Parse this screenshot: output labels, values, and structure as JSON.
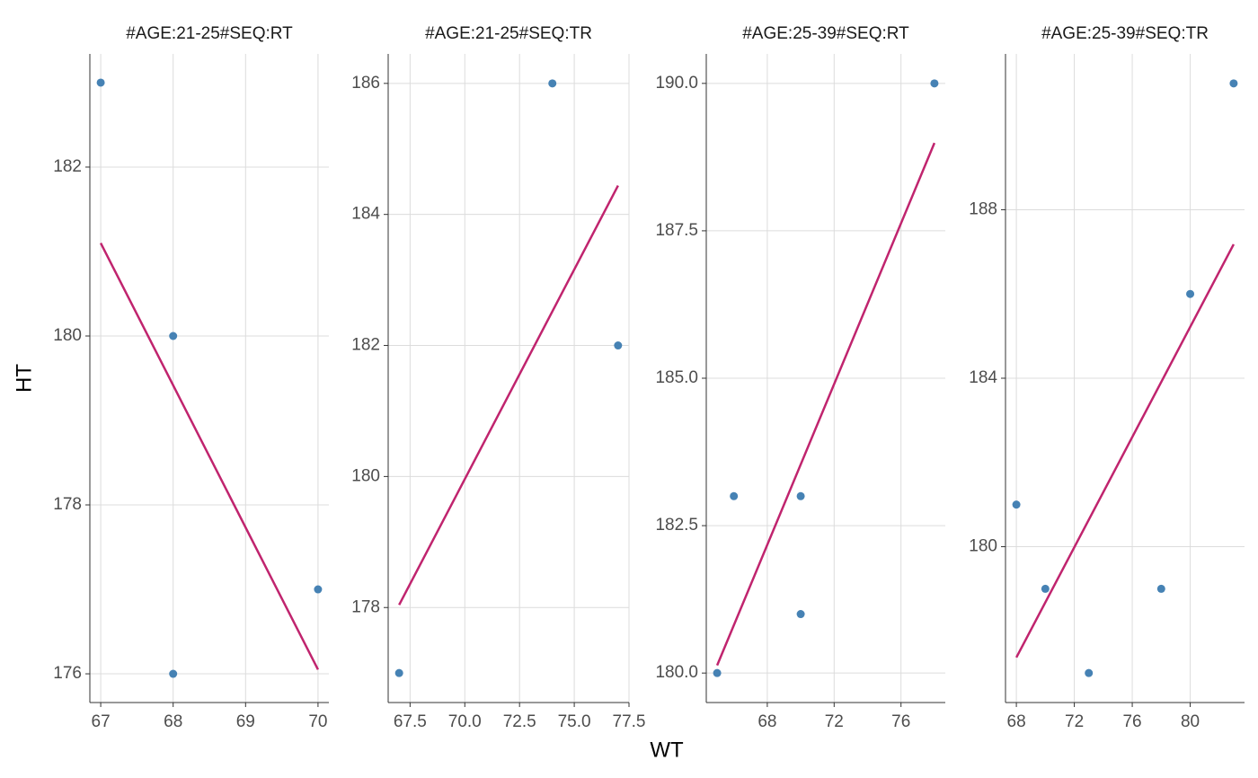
{
  "xlabel": "WT",
  "ylabel": "HT",
  "chart_data": [
    {
      "type": "scatter",
      "title": "#AGE:21-25#SEQ:RT",
      "color": "#4682b4",
      "x": [
        67,
        68,
        68,
        70
      ],
      "y": [
        183,
        180,
        176,
        177
      ],
      "fit": {
        "x": [
          67,
          70
        ],
        "y": [
          181.1,
          176.05
        ],
        "color": "#c0246e"
      },
      "xlim": [
        66.85,
        70.15
      ],
      "ylim": [
        175.66,
        183.34
      ],
      "xticks": [
        67,
        68,
        69,
        70
      ],
      "yticks": [
        176,
        178,
        180,
        182
      ],
      "grid": true
    },
    {
      "type": "scatter",
      "title": "#AGE:21-25#SEQ:TR",
      "color": "#4682b4",
      "x": [
        67,
        74,
        77
      ],
      "y": [
        177,
        186,
        182
      ],
      "fit": {
        "x": [
          67,
          77
        ],
        "y": [
          178.04,
          184.44
        ],
        "color": "#c0246e"
      },
      "xlim": [
        66.5,
        77.5
      ],
      "ylim": [
        176.55,
        186.45
      ],
      "xticks": [
        67.5,
        {
          "value": 70,
          "label": "70.0"
        },
        72.5,
        {
          "value": 75,
          "label": "75.0"
        },
        77.5
      ],
      "yticks": [
        178,
        180,
        182,
        184,
        186
      ],
      "grid": true
    },
    {
      "type": "scatter",
      "title": "#AGE:25-39#SEQ:RT",
      "color": "#4682b4",
      "x": [
        65,
        66,
        70,
        70,
        78
      ],
      "y": [
        180,
        183,
        183,
        181,
        190
      ],
      "fit": {
        "x": [
          65,
          78
        ],
        "y": [
          180.13,
          188.99
        ],
        "color": "#c0246e"
      },
      "xlim": [
        64.35,
        78.65
      ],
      "ylim": [
        179.5,
        190.5
      ],
      "xticks": [
        68,
        72,
        76
      ],
      "yticks": [
        {
          "value": 180,
          "label": "180.0"
        },
        182.5,
        {
          "value": 185,
          "label": "185.0"
        },
        187.5,
        {
          "value": 190,
          "label": "190.0"
        }
      ],
      "grid": true
    },
    {
      "type": "scatter",
      "title": "#AGE:25-39#SEQ:TR",
      "color": "#4682b4",
      "x": [
        68,
        70,
        73,
        78,
        80,
        83
      ],
      "y": [
        181,
        179,
        177,
        179,
        186,
        191
      ],
      "fit": {
        "x": [
          68,
          83
        ],
        "y": [
          177.37,
          187.18
        ],
        "color": "#c0246e"
      },
      "xlim": [
        67.25,
        83.75
      ],
      "ylim": [
        176.3,
        191.7
      ],
      "xticks": [
        68,
        72,
        76,
        80
      ],
      "yticks": [
        180,
        184,
        188
      ],
      "grid": true
    }
  ]
}
